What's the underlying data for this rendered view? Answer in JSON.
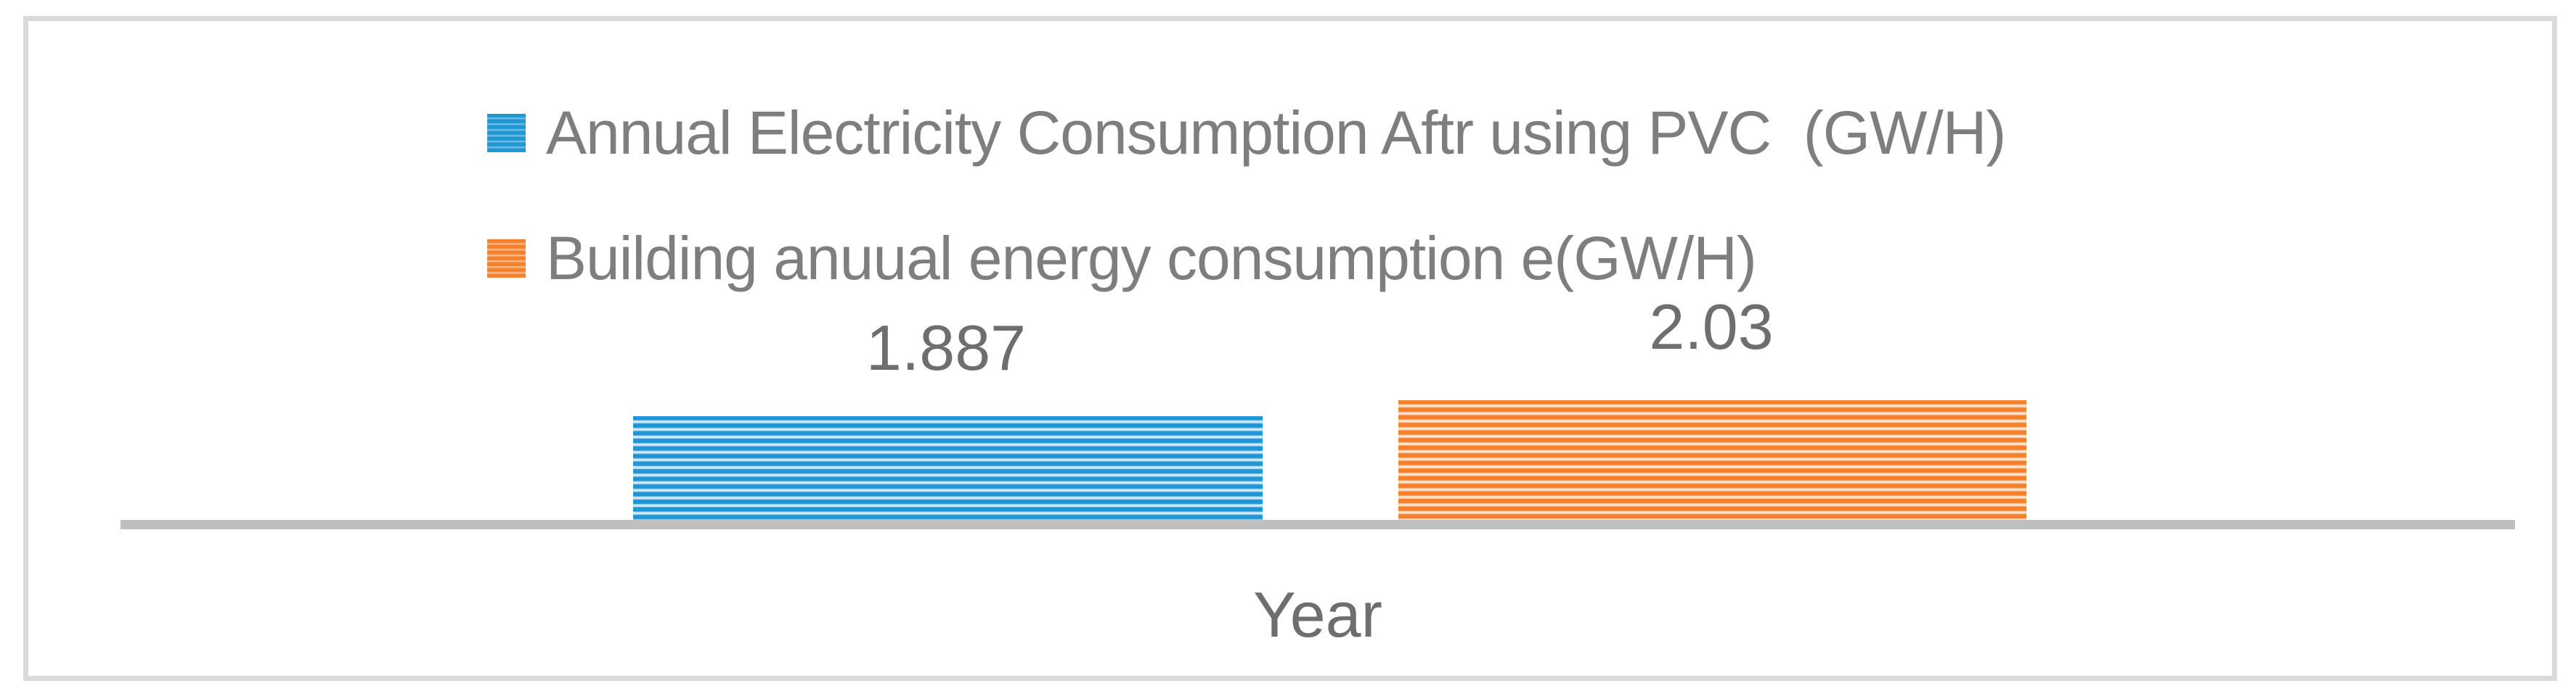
{
  "chart_data": {
    "type": "bar",
    "categories": [
      "Year"
    ],
    "xlabel": "Year",
    "ylabel": "",
    "title": "",
    "grid": false,
    "legend_position": "top-center",
    "pattern_fill": "horizontal-stripes",
    "axis_line_color": "#bfbfbf",
    "frame_border_color": "#dadada",
    "text_color": "#6e6e6e",
    "ylim": [
      0,
      2.2
    ],
    "series": [
      {
        "name": "Annual Electricity Consumption Aftr using PVC  (GW/H)",
        "values": [
          1.887
        ],
        "data_label": "1.887",
        "color": "#2196d5",
        "pattern_light_color": "#cfe7f7"
      },
      {
        "name": "Building anuual energy consumption e(GW/H)",
        "values": [
          2.03
        ],
        "data_label": "2.03",
        "color": "#f5802c",
        "pattern_light_color": "#fbe3ce"
      }
    ]
  },
  "legend": {
    "items": [
      {
        "label": "Annual Electricity Consumption Aftr using PVC  (GW/H)",
        "swatch_color": "#2196d5"
      },
      {
        "label": "Building anuual energy consumption e(GW/H)",
        "swatch_color": "#f5802c"
      }
    ]
  }
}
